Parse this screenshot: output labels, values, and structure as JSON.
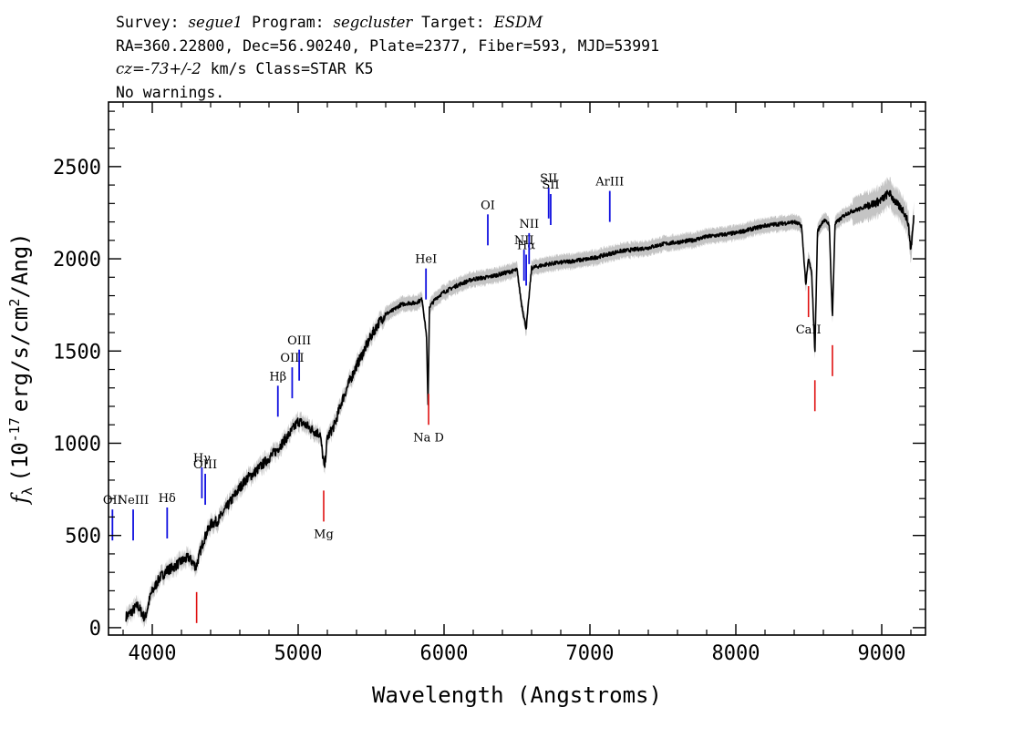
{
  "header": {
    "survey_label": "Survey:",
    "survey": "segue1",
    "program_label": "Program:",
    "program": "segcluster",
    "target_label": "Target:",
    "target": "ESDM",
    "line2": "RA=360.22800, Dec=56.90240, Plate=2377, Fiber=593, MJD=53991",
    "cz_label": "cz",
    "cz_value": "=-73+/-2",
    "cz_rest": " km/s Class=STAR K5",
    "line4": "No warnings."
  },
  "chart_data": {
    "type": "line",
    "title": "",
    "xlabel": "Wavelength (Angstroms)",
    "ylabel_parts": {
      "flux": "f",
      "sub": "λ",
      "open": "(10",
      "exp": "-17",
      "units": "erg/s/cm",
      "sq": "2",
      "tail": "/Ang)"
    },
    "xlim": [
      3700,
      9300
    ],
    "ylim": [
      -40,
      2850
    ],
    "xticks": [
      4000,
      5000,
      6000,
      7000,
      8000,
      9000
    ],
    "xtick_labels": [
      "4000",
      "5000",
      "6000",
      "7000",
      "8000",
      "9000"
    ],
    "yticks": [
      0,
      500,
      1000,
      1500,
      2000,
      2500
    ],
    "ytick_labels": [
      "0",
      "500",
      "1000",
      "1500",
      "2000",
      "2500"
    ],
    "series": [
      {
        "name": "flux",
        "color": "#000000",
        "x": [
          3820,
          3850,
          3900,
          3950,
          3990,
          4050,
          4100,
          4150,
          4200,
          4250,
          4300,
          4350,
          4400,
          4450,
          4500,
          4550,
          4600,
          4650,
          4700,
          4750,
          4800,
          4850,
          4900,
          4950,
          5000,
          5050,
          5100,
          5150,
          5180,
          5200,
          5250,
          5300,
          5350,
          5400,
          5450,
          5500,
          5550,
          5600,
          5650,
          5700,
          5750,
          5800,
          5850,
          5880,
          5890,
          5900,
          5950,
          6000,
          6100,
          6200,
          6300,
          6400,
          6500,
          6530,
          6563,
          6600,
          6700,
          6800,
          6900,
          7000,
          7100,
          7200,
          7300,
          7400,
          7500,
          7600,
          7700,
          7800,
          7900,
          8000,
          8100,
          8200,
          8300,
          8400,
          8450,
          8480,
          8498,
          8520,
          8542,
          8560,
          8600,
          8640,
          8662,
          8680,
          8750,
          8800,
          8850,
          8900,
          8950,
          9000,
          9050,
          9100,
          9150,
          9180,
          9200,
          9220
        ],
        "values": [
          60,
          80,
          120,
          50,
          180,
          270,
          310,
          330,
          360,
          380,
          330,
          470,
          560,
          580,
          640,
          700,
          760,
          810,
          840,
          880,
          920,
          960,
          1010,
          1060,
          1120,
          1100,
          1070,
          1050,
          860,
          1030,
          1100,
          1230,
          1330,
          1420,
          1500,
          1580,
          1650,
          1700,
          1720,
          1750,
          1760,
          1760,
          1780,
          1580,
          1200,
          1740,
          1790,
          1820,
          1860,
          1890,
          1900,
          1920,
          1940,
          1760,
          1620,
          1950,
          1970,
          1980,
          1990,
          2000,
          2020,
          2040,
          2050,
          2060,
          2080,
          2090,
          2100,
          2120,
          2130,
          2140,
          2160,
          2180,
          2190,
          2200,
          2180,
          1860,
          2000,
          1920,
          1490,
          2150,
          2210,
          2190,
          1680,
          2190,
          2240,
          2260,
          2270,
          2290,
          2300,
          2320,
          2360,
          2300,
          2260,
          2200,
          2050,
          2220
        ]
      }
    ],
    "emission_lines": [
      {
        "label": "OII",
        "wave": 3727
      },
      {
        "label": "NeIII",
        "wave": 3869
      },
      {
        "label": "Hδ",
        "wave": 4102
      },
      {
        "label": "Hγ",
        "wave": 4340
      },
      {
        "label": "OIII",
        "wave": 4363
      },
      {
        "label": "Hβ",
        "wave": 4861
      },
      {
        "label": "OIII",
        "wave": 4959
      },
      {
        "label": "OIII",
        "wave": 5007
      },
      {
        "label": "HeI",
        "wave": 5876
      },
      {
        "label": "OI",
        "wave": 6300
      },
      {
        "label": "NII",
        "wave": 6548
      },
      {
        "label": "Hα",
        "wave": 6563
      },
      {
        "label": "NII",
        "wave": 6583
      },
      {
        "label": "SII",
        "wave": 6717
      },
      {
        "label": "SII",
        "wave": 6731
      },
      {
        "label": "ArIII",
        "wave": 7136
      }
    ],
    "absorption_lines": [
      {
        "label": "",
        "wave": 4304
      },
      {
        "label": "Mg",
        "wave": 5175
      },
      {
        "label": "Na D",
        "wave": 5894
      },
      {
        "label": "CaII",
        "wave": 8498
      },
      {
        "label": "",
        "wave": 8542
      },
      {
        "label": "",
        "wave": 8662
      }
    ],
    "colors": {
      "flux": "#000000",
      "error": "#c4c4c4",
      "emission": "#1010e0",
      "absorption": "#e01010"
    }
  }
}
